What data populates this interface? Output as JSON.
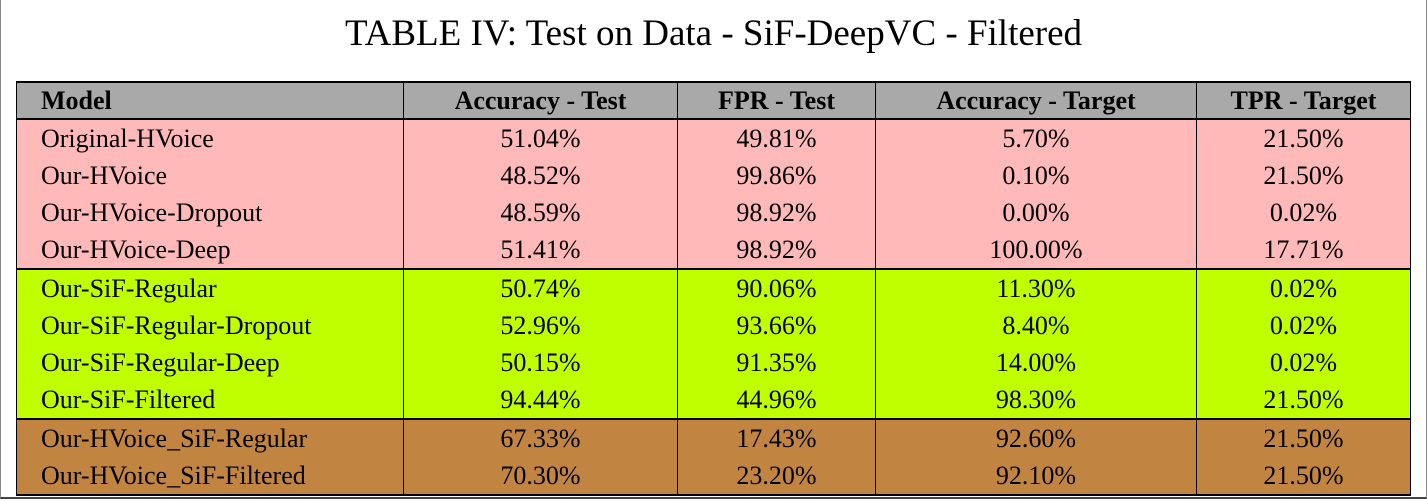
{
  "caption": "TABLE IV: Test on Data - SiF-DeepVC - Filtered",
  "colors": {
    "header": "#a9a9a9",
    "hvoice": "#ffb9b9",
    "sif": "#bfff00",
    "combined": "#c18541"
  },
  "columns": [
    "Model",
    "Accuracy - Test",
    "FPR - Test",
    "Accuracy - Target",
    "TPR - Target"
  ],
  "groups": [
    {
      "color_key": "hvoice",
      "rows": [
        [
          "Original-HVoice",
          "51.04%",
          "49.81%",
          "5.70%",
          "21.50%"
        ],
        [
          "Our-HVoice",
          "48.52%",
          "99.86%",
          "0.10%",
          "21.50%"
        ],
        [
          "Our-HVoice-Dropout",
          "48.59%",
          "98.92%",
          "0.00%",
          "0.02%"
        ],
        [
          "Our-HVoice-Deep",
          "51.41%",
          "98.92%",
          "100.00%",
          "17.71%"
        ]
      ]
    },
    {
      "color_key": "sif",
      "rows": [
        [
          "Our-SiF-Regular",
          "50.74%",
          "90.06%",
          "11.30%",
          "0.02%"
        ],
        [
          "Our-SiF-Regular-Dropout",
          "52.96%",
          "93.66%",
          "8.40%",
          "0.02%"
        ],
        [
          "Our-SiF-Regular-Deep",
          "50.15%",
          "91.35%",
          "14.00%",
          "0.02%"
        ],
        [
          "Our-SiF-Filtered",
          "94.44%",
          "44.96%",
          "98.30%",
          "21.50%"
        ]
      ]
    },
    {
      "color_key": "combined",
      "rows": [
        [
          "Our-HVoice_SiF-Regular",
          "67.33%",
          "17.43%",
          "92.60%",
          "21.50%"
        ],
        [
          "Our-HVoice_SiF-Filtered",
          "70.30%",
          "23.20%",
          "92.10%",
          "21.50%"
        ]
      ]
    }
  ]
}
